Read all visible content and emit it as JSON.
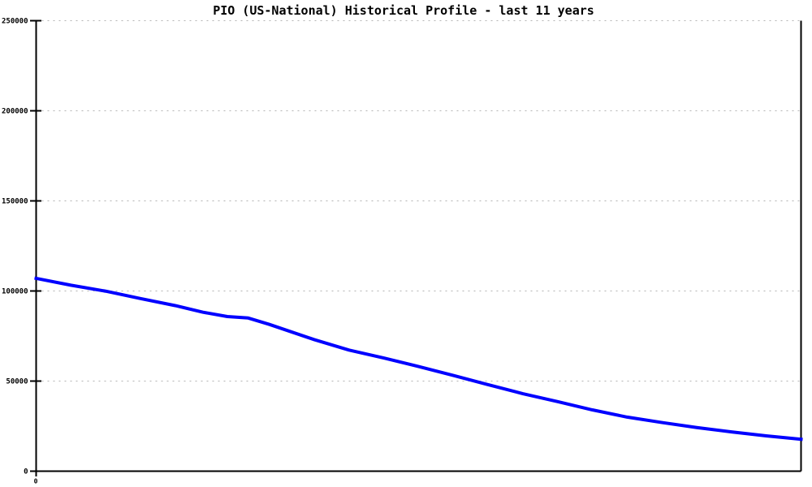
{
  "title": "PIO (US-National) Historical Profile - last 11 years",
  "colors": {
    "line": "#0000ff",
    "grid": "#b3b3b3",
    "axis": "#000000",
    "background": "#ffffff",
    "text": "#000000"
  },
  "chart_data": {
    "type": "line",
    "title": "PIO (US-National) Historical Profile - last 11 years",
    "xlabel": "",
    "ylabel": "",
    "legend": "none",
    "grid": "horizontal-dotted",
    "x_axis": {
      "min": 0,
      "max": 11,
      "unit": "years",
      "visible_tick_labels": [
        "0"
      ]
    },
    "y_axis": {
      "min": 0,
      "max": 250000,
      "tick_interval": 50000,
      "tick_labels": [
        "0",
        "50000",
        "100000",
        "150000",
        "200000",
        "250000"
      ]
    },
    "series": [
      {
        "name": "PIO (US-National)",
        "color": "#0000ff",
        "line_width": 4,
        "x": [
          0,
          0.5,
          1.0,
          1.5,
          2.0,
          2.4,
          2.75,
          3.05,
          3.35,
          4.0,
          4.5,
          5.0,
          5.5,
          6.0,
          6.5,
          7.0,
          7.5,
          8.0,
          8.5,
          9.0,
          9.5,
          10.0,
          10.5,
          11.0
        ],
        "y": [
          107000,
          103200,
          99900,
          95800,
          91900,
          88200,
          85800,
          85000,
          81500,
          73000,
          67200,
          62800,
          58100,
          53100,
          48000,
          43000,
          38600,
          34000,
          30000,
          27000,
          24200,
          21800,
          19600,
          17700
        ]
      }
    ]
  }
}
